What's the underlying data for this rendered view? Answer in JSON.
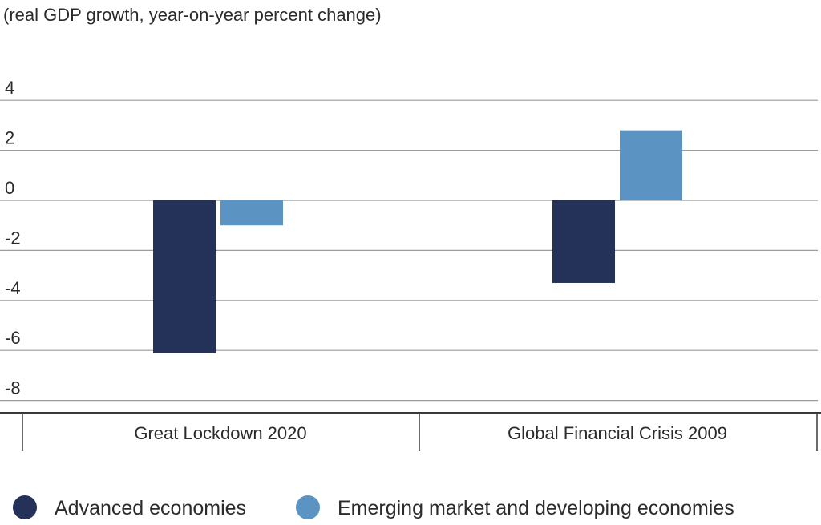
{
  "chart_data": {
    "type": "bar",
    "title": "",
    "subtitle": "(real GDP growth, year-on-year percent change)",
    "xlabel": "",
    "ylabel": "",
    "ylim": [
      -8,
      4
    ],
    "yticks": [
      4,
      2,
      0,
      -2,
      -4,
      -6,
      -8
    ],
    "categories": [
      "Great Lockdown 2020",
      "Global Financial Crisis 2009"
    ],
    "series": [
      {
        "name": "Advanced economies",
        "values": [
          -6.1,
          -3.3
        ],
        "color": "#243259"
      },
      {
        "name": "Emerging market and developing economies",
        "values": [
          -1.0,
          2.8
        ],
        "color": "#5b93c2"
      }
    ],
    "grid": true,
    "legend": "bottom-left"
  }
}
